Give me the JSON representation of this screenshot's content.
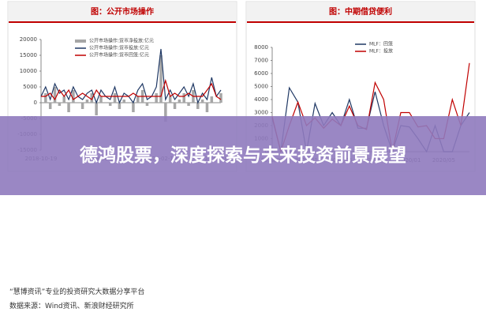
{
  "chart_data": [
    {
      "type": "bar-line",
      "title": "图：公开市场操作",
      "categories": [
        "2018-10-19",
        null,
        null,
        null,
        null,
        null,
        null,
        null,
        null,
        null,
        null,
        null,
        null,
        "2019-06-19",
        null,
        null,
        null,
        null,
        null,
        null,
        null,
        null,
        null,
        null,
        null,
        null,
        "2020-02-19",
        null,
        null,
        null,
        null,
        null,
        null,
        null,
        null,
        null,
        null,
        null,
        null,
        "2020-10-19"
      ],
      "series": [
        {
          "name": "公开市场操作:货币净投放:亿元",
          "color": "#a6a6a6",
          "mark": "bar",
          "values": [
            0,
            3000,
            -2000,
            5000,
            -1000,
            2000,
            -3000,
            4000,
            0,
            -2000,
            1000,
            3000,
            -4000,
            2000,
            0,
            -1000,
            3000,
            -2000,
            1000,
            0,
            -3000,
            2000,
            4000,
            -1000,
            0,
            3000,
            15000,
            -6000,
            2000,
            -2000,
            1000,
            3000,
            -1000,
            4000,
            -2000,
            1000,
            -3000,
            2000,
            0,
            3000
          ]
        },
        {
          "name": "公开市场操作:货币投放:亿元",
          "color": "#1f3864",
          "mark": "line",
          "values": [
            2000,
            5000,
            1000,
            6000,
            3000,
            4000,
            1000,
            5000,
            2000,
            1000,
            3000,
            4000,
            0,
            4000,
            2000,
            1000,
            5000,
            0,
            3000,
            2000,
            0,
            4000,
            6000,
            1000,
            2000,
            5000,
            17000,
            1000,
            4000,
            1000,
            3000,
            5000,
            2000,
            6000,
            0,
            3000,
            1000,
            8000,
            2000,
            4000
          ]
        },
        {
          "name": "公开市场操作:货币回笼:亿元",
          "color": "#c00000",
          "mark": "line",
          "values": [
            2000,
            2000,
            3000,
            1000,
            4000,
            2000,
            4000,
            1000,
            2000,
            3000,
            2000,
            1000,
            4000,
            2000,
            2000,
            2000,
            2000,
            2000,
            2000,
            2000,
            3000,
            2000,
            2000,
            2000,
            2000,
            2000,
            2000,
            7000,
            2000,
            3000,
            2000,
            2000,
            3000,
            2000,
            2000,
            2000,
            4000,
            6000,
            2000,
            1000
          ]
        }
      ],
      "ylim": [
        -15000,
        20000
      ],
      "yticks": [
        -15000,
        -10000,
        -5000,
        0,
        5000,
        10000,
        15000,
        20000
      ]
    },
    {
      "type": "line",
      "title": "图：中期借贷便利",
      "categories": [
        "2018/09",
        null,
        null,
        null,
        "2019/01",
        null,
        null,
        null,
        "2019/05",
        null,
        null,
        null,
        "2019/09",
        null,
        null,
        null,
        "2020/01",
        null,
        null,
        null,
        "2020/05",
        null,
        null,
        null
      ],
      "series": [
        {
          "name": "MLF：回笼",
          "color": "#1f3864",
          "values": [
            2600,
            0,
            4900,
            3800,
            0,
            3700,
            2000,
            3000,
            2000,
            4000,
            1800,
            1800,
            4600,
            2000,
            0,
            2000,
            1900,
            1000,
            0,
            2000,
            0,
            0,
            2000,
            3000
          ]
        },
        {
          "name": "MLF：投放",
          "color": "#c00000",
          "values": [
            2700,
            0,
            2000,
            3800,
            2000,
            2600,
            1800,
            2500,
            2000,
            3500,
            2000,
            1700,
            5300,
            4000,
            0,
            3000,
            3000,
            1900,
            2000,
            1000,
            1000,
            4000,
            2000,
            6800
          ]
        }
      ],
      "ylim": [
        0,
        8000
      ],
      "yticks": [
        0,
        1000,
        2000,
        3000,
        4000,
        5000,
        6000,
        7000,
        8000
      ]
    }
  ],
  "banner": {
    "title": "德鸿股票，深度探索与未来投资前景展望"
  },
  "footer": {
    "line1": "“慧博资讯”专业的投资研究大数据分享平台",
    "line2": "数据来源：Wind资讯、新浪财经研究所"
  }
}
